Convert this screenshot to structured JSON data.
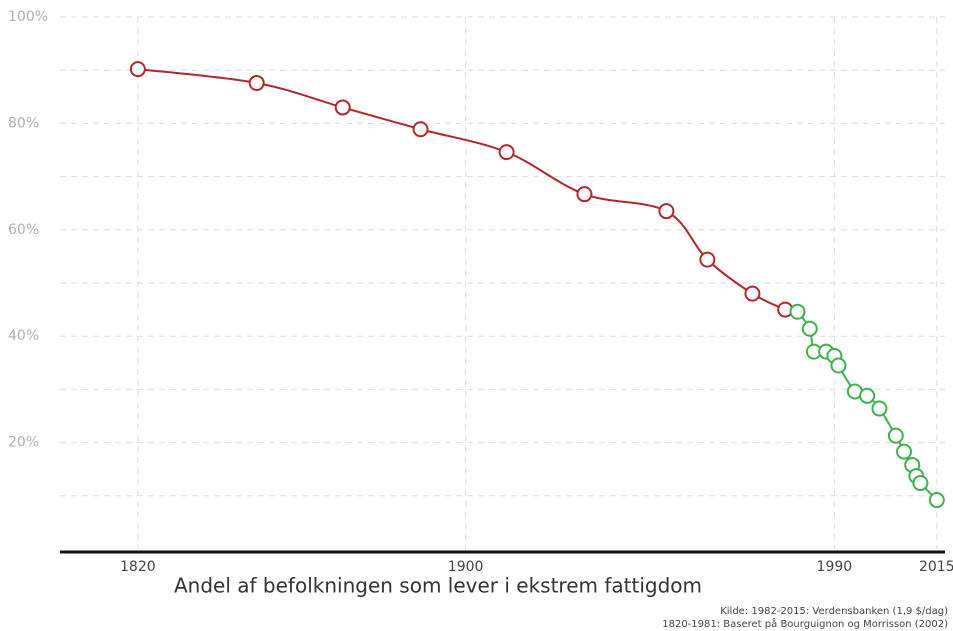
{
  "chart_data": {
    "type": "line",
    "title": "Andel af befolkningen som lever i ekstrem fattigdom",
    "sources": [
      "Kilde: 1982-2015: Verdensbanken (1,9 $/dag)",
      "1820-1981: Baseret på Bourguignon og Morrisson (2002)"
    ],
    "xlim": [
      1801,
      2017
    ],
    "xticks": [
      1820,
      1900,
      1990,
      2015
    ],
    "ylim": [
      0,
      100
    ],
    "yticks": [
      {
        "value": 20,
        "label": "20%"
      },
      {
        "value": 40,
        "label": "40%"
      },
      {
        "value": 60,
        "label": "60%"
      },
      {
        "value": 80,
        "label": "80%"
      },
      {
        "value": 100,
        "label": "100%"
      }
    ],
    "yminor": [
      10,
      30,
      50,
      70,
      90
    ],
    "grid": true,
    "series": [
      {
        "color": "#b5262b",
        "x": [
          1820,
          1849,
          1870,
          1889,
          1910,
          1929,
          1949,
          1959,
          1970,
          1978
        ],
        "values": [
          90.2,
          87.6,
          83,
          78.9,
          74.6,
          66.7,
          63.5,
          54.4,
          48,
          45
        ]
      },
      {
        "color": "#3cb44b",
        "x": [
          1981,
          1984,
          1985,
          1988,
          1990,
          1991,
          1995,
          1998,
          2001,
          2005,
          2007,
          2009,
          2010,
          2011,
          2015
        ],
        "values": [
          44.6,
          41.4,
          37.1,
          37.1,
          36.3,
          34.5,
          29.6,
          28.8,
          26.4,
          21.3,
          18.3,
          15.8,
          13.7,
          12.4,
          9.2
        ]
      }
    ]
  }
}
